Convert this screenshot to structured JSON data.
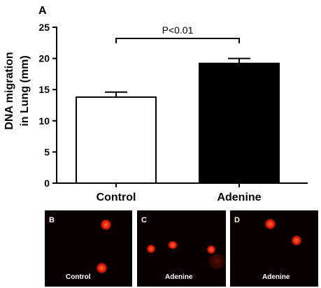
{
  "chart_data": {
    "type": "bar",
    "panel_label": "A",
    "categories": [
      "Control",
      "Adenine"
    ],
    "values": [
      13.8,
      19.2
    ],
    "errors": [
      0.8,
      0.8
    ],
    "bar_colors": [
      "#ffffff",
      "#000000"
    ],
    "ylabel_line1": "DNA migration",
    "ylabel_line2": "in Lung (mm)",
    "ylim": [
      0,
      25
    ],
    "yticks": [
      0,
      5,
      10,
      15,
      20,
      25
    ],
    "significance": "P<0.01",
    "grid": false
  },
  "micrographs": [
    {
      "letter": "B",
      "caption": "Control"
    },
    {
      "letter": "C",
      "caption": "Adenine"
    },
    {
      "letter": "D",
      "caption": "Adenine"
    }
  ]
}
